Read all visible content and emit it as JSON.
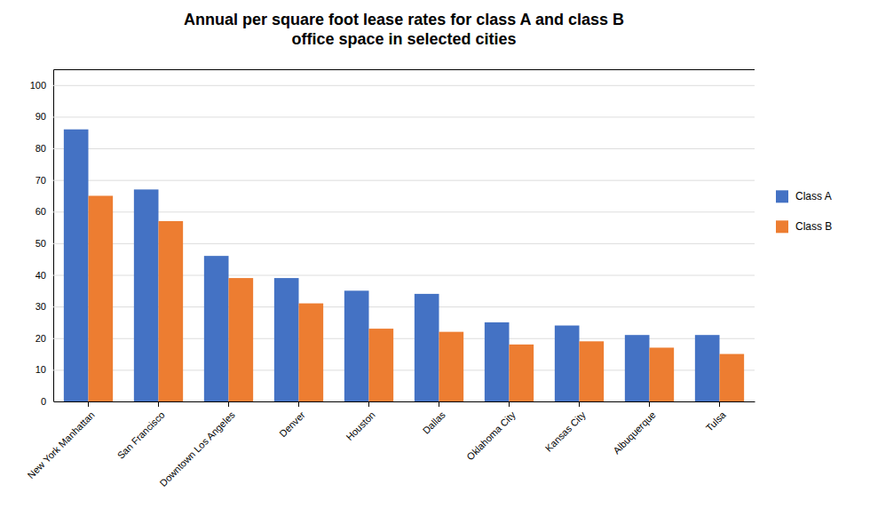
{
  "chart_data": {
    "type": "bar",
    "title": "Annual per square foot lease rates for class A and class B\noffice space in selected cities",
    "categories": [
      "New York Manhattan",
      "San Francisco",
      "Downtown Los Angeles",
      "Denver",
      "Houston",
      "Dallas",
      "Oklahoma City",
      "Kansas City",
      "Albuquerque",
      "Tulsa"
    ],
    "series": [
      {
        "name": "Class A",
        "color": "#4472C4",
        "values": [
          86,
          67,
          46,
          39,
          35,
          34,
          25,
          24,
          21,
          21
        ]
      },
      {
        "name": "Class B",
        "color": "#ED7D31",
        "values": [
          65,
          57,
          39,
          31,
          23,
          22,
          18,
          19,
          17,
          15
        ]
      }
    ],
    "ylim": [
      0,
      105
    ],
    "yticks": [
      0,
      10,
      20,
      30,
      40,
      50,
      60,
      70,
      80,
      90,
      100
    ],
    "grid": true,
    "legend": "right"
  }
}
